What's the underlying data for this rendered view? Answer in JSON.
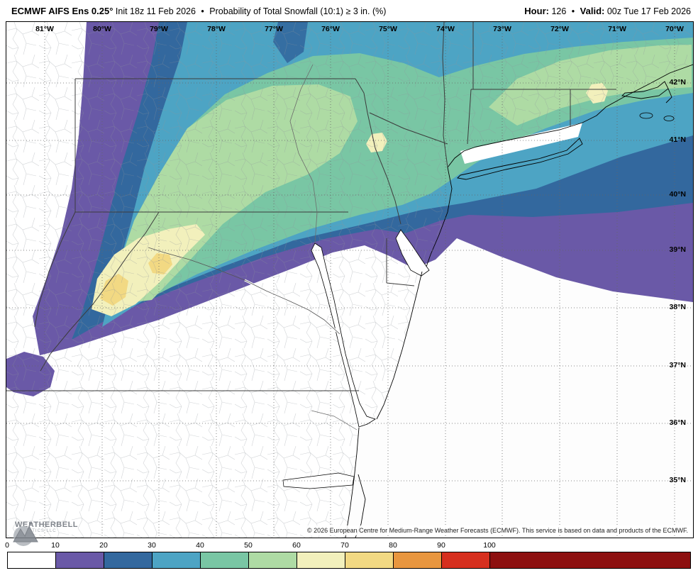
{
  "header": {
    "model": "ECMWF AIFS Ens 0.25°",
    "init": "Init 18z 11 Feb 2026",
    "bullet": "•",
    "product": "Probability of Total Snowfall (10:1) ≥ 3 in. (%)",
    "hour_label": "Hour:",
    "hour_value": "126",
    "valid_label": "Valid:",
    "valid_value": "00z Tue 17 Feb 2026"
  },
  "map": {
    "lon_labels": [
      "81°W",
      "80°W",
      "79°W",
      "78°W",
      "77°W",
      "76°W",
      "75°W",
      "74°W",
      "73°W",
      "72°W",
      "71°W",
      "70°W"
    ],
    "lat_labels": [
      "42°N",
      "41°N",
      "40°N",
      "39°N",
      "38°N",
      "37°N",
      "36°N",
      "35°N"
    ],
    "attribution": "© 2026 European Centre for Medium-Range Weather Forecasts (ECMWF). This service is based on data and products of the ECMWF.",
    "logo": {
      "name": "WEATHERBELL",
      "sub": "ANALYTICS LLC"
    }
  },
  "colorbar": {
    "ticks": [
      "0",
      "10",
      "20",
      "30",
      "40",
      "50",
      "60",
      "70",
      "80",
      "90",
      "100"
    ],
    "colors": [
      "#ffffff",
      "#6a59a7",
      "#33689e",
      "#4da4c4",
      "#79c6a4",
      "#aedba4",
      "#f2f0bc",
      "#f2d983",
      "#e8963f",
      "#d62f1e",
      "#8d1010"
    ]
  }
}
